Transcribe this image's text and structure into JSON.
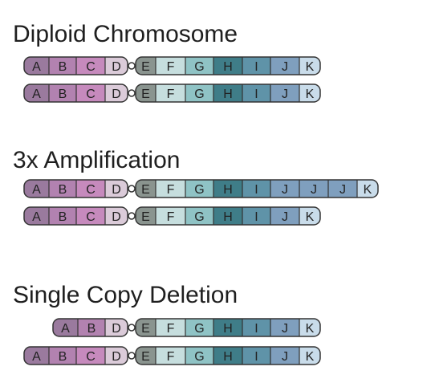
{
  "sections": [
    {
      "title": "Diploid Chromosome",
      "chromosomes": [
        [
          "A",
          "B",
          "C",
          "D",
          "E",
          "F",
          "G",
          "H",
          "I",
          "J",
          "K"
        ],
        [
          "A",
          "B",
          "C",
          "D",
          "E",
          "F",
          "G",
          "H",
          "I",
          "J",
          "K"
        ]
      ]
    },
    {
      "title": "3x Amplification",
      "chromosomes": [
        [
          "A",
          "B",
          "C",
          "D",
          "E",
          "F",
          "G",
          "H",
          "I",
          "J",
          "J",
          "J",
          "K"
        ],
        [
          "A",
          "B",
          "C",
          "D",
          "E",
          "F",
          "G",
          "H",
          "I",
          "J",
          "K"
        ]
      ]
    },
    {
      "title": "Single Copy Deletion",
      "chromosomes": [
        [
          "A",
          "B",
          "D",
          "E",
          "F",
          "G",
          "H",
          "I",
          "J",
          "K"
        ],
        [
          "A",
          "B",
          "C",
          "D",
          "E",
          "F",
          "G",
          "H",
          "I",
          "J",
          "K"
        ]
      ]
    }
  ],
  "band_colors": {
    "A": "#9a7a9e",
    "B": "#b282b0",
    "C": "#c68abd",
    "D": "#dbcbd9",
    "E": "#8a948f",
    "F": "#c6dede",
    "G": "#8fc3c5",
    "H": "#3f7d88",
    "I": "#5f93a8",
    "J": "#7f9fbe",
    "K": "#c9dcea"
  },
  "outline_color": "#333333",
  "centromere_color": "#ffffff"
}
